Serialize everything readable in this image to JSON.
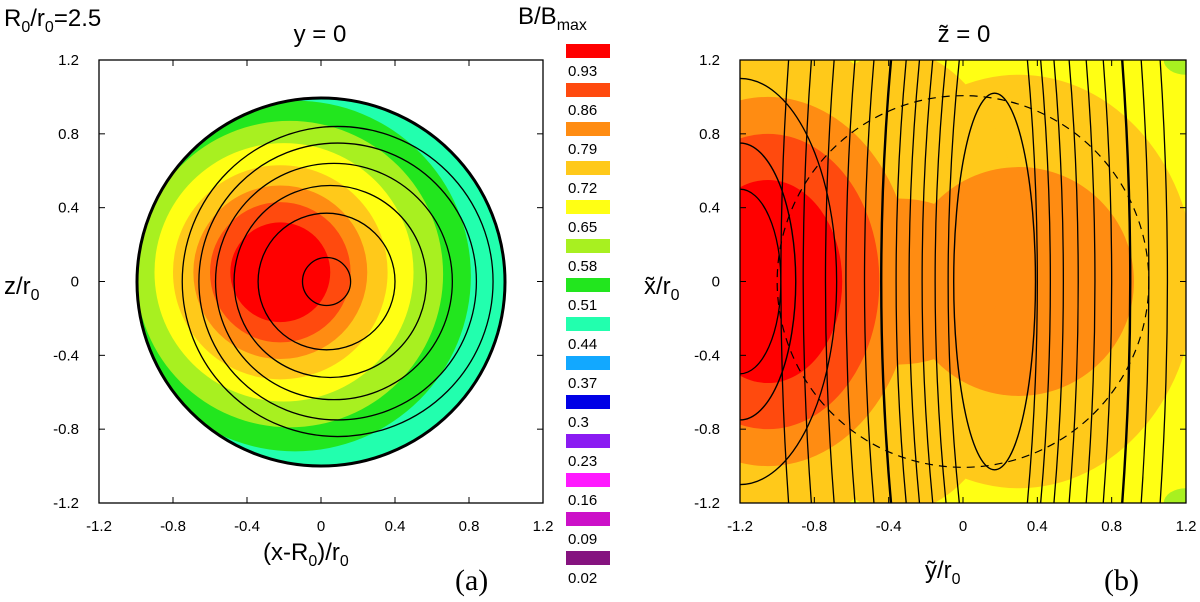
{
  "figure": {
    "param_prefix": "R",
    "param_sub1": "0",
    "param_mid": "/r",
    "param_sub2": "0",
    "param_value": "=2.5",
    "colorbar_title_main": "B/B",
    "colorbar_title_sub": "max",
    "panel_a_label": "(a)",
    "panel_b_label": "(b)"
  },
  "colorbar": {
    "levels": [
      {
        "label": "0.93",
        "color": "#ff0000"
      },
      {
        "label": "0.86",
        "color": "#ff4a0e"
      },
      {
        "label": "0.79",
        "color": "#ff8c12"
      },
      {
        "label": "0.72",
        "color": "#ffc91a"
      },
      {
        "label": "0.65",
        "color": "#ffff14"
      },
      {
        "label": "0.58",
        "color": "#a8f020"
      },
      {
        "label": "0.51",
        "color": "#22e61e"
      },
      {
        "label": "0.44",
        "color": "#22ffae"
      },
      {
        "label": "0.37",
        "color": "#12a8ff"
      },
      {
        "label": "0.3",
        "color": "#0000e6"
      },
      {
        "label": "0.23",
        "color": "#8a1bf2"
      },
      {
        "label": "0.16",
        "color": "#ff19ff"
      },
      {
        "label": "0.09",
        "color": "#cc10c8"
      },
      {
        "label": "0.02",
        "color": "#85137f"
      }
    ]
  },
  "chart_data": [
    {
      "type": "heatmap",
      "panel": "(a)",
      "title": "y = 0",
      "xlabel": "(x-R0)/r0",
      "ylabel": "z/r0",
      "xlim": [
        -1.2,
        1.2
      ],
      "ylim": [
        -1.2,
        1.2
      ],
      "xticks": [
        "-1.2",
        "-0.8",
        "-0.4",
        "0",
        "0.4",
        "0.8",
        "1.2"
      ],
      "yticks": [
        "1.2",
        "0.8",
        "0.4",
        "0",
        "-0.4",
        "-0.8",
        "-1.2"
      ],
      "domain_radius": 1.0,
      "field_peak_center": [
        -0.2,
        0.05
      ],
      "contour_circles": [
        {
          "cx": 0.03,
          "cz": 0.0,
          "r": 0.13
        },
        {
          "cx": 0.03,
          "cz": 0.0,
          "r": 0.37
        },
        {
          "cx": 0.05,
          "cz": 0.0,
          "r": 0.52
        },
        {
          "cx": 0.07,
          "cz": 0.0,
          "r": 0.64
        },
        {
          "cx": 0.09,
          "cz": 0.0,
          "r": 0.75
        },
        {
          "cx": 0.09,
          "cz": 0.0,
          "r": 0.84
        }
      ]
    },
    {
      "type": "heatmap",
      "panel": "(b)",
      "title": "z̃ = 0",
      "xlabel": "ỹ/r0",
      "ylabel": "x̃/r0",
      "xlim": [
        -1.2,
        1.2
      ],
      "ylim": [
        -1.2,
        1.2
      ],
      "xticks": [
        "-1.2",
        "-0.8",
        "-0.4",
        "0",
        "0.4",
        "0.8",
        "1.2"
      ],
      "yticks": [
        "1.2",
        "0.8",
        "0.4",
        "0",
        "-0.4",
        "-0.8",
        "-1.2"
      ],
      "dashed_circle_radius": 1.0,
      "field_peaks": [
        [
          -1.05,
          0.0
        ],
        [
          0.3,
          0.0
        ]
      ],
      "closed_contours": [
        {
          "cy": -1.2,
          "cx": 0.0,
          "ry": 0.3,
          "rx": 0.75
        },
        {
          "cy": 0.17,
          "cx": 0.0,
          "ry": 0.22,
          "rx": 1.02
        }
      ],
      "open_contour_y_positions": [
        -0.98,
        -0.86,
        -0.74,
        -0.63,
        -0.53,
        -0.44,
        -0.36,
        -0.29,
        -0.22,
        -0.15,
        -0.08,
        0.4,
        0.47,
        0.54,
        0.62,
        0.71,
        0.8,
        0.9,
        1.0,
        1.1
      ]
    }
  ]
}
